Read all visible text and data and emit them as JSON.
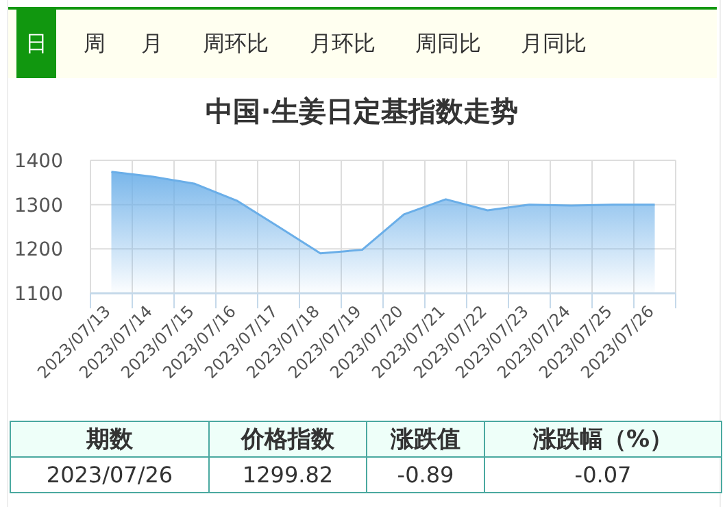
{
  "chart_data": [
    {
      "type": "other",
      "annotations": [
        "日",
        "周",
        "月",
        "周环比",
        "月环比",
        "周同比",
        "月同比"
      ]
    },
    {
      "type": "area",
      "title": "中国·生姜日定基指数走势",
      "categories": [
        "2023/07/13",
        "2023/07/14",
        "2023/07/15",
        "2023/07/16",
        "2023/07/17",
        "2023/07/18",
        "2023/07/19",
        "2023/07/20",
        "2023/07/21",
        "2023/07/22",
        "2023/07/23",
        "2023/07/24",
        "2023/07/25",
        "2023/07/26"
      ],
      "values": [
        1374,
        1363,
        1347,
        1309,
        1250,
        1190,
        1198,
        1278,
        1312,
        1287,
        1300,
        1298,
        1300,
        1300
      ],
      "color": "#6aaee8",
      "ylim": [
        1100,
        1400
      ],
      "yticks": [
        1100,
        1200,
        1300,
        1400
      ],
      "grid": true
    },
    {
      "type": "other",
      "annotations": [
        "期数",
        "价格指数",
        "涨跌值",
        "涨跌幅（%）",
        "2023/07/26",
        "1299.82",
        "-0.89",
        "-0.07"
      ]
    }
  ]
}
